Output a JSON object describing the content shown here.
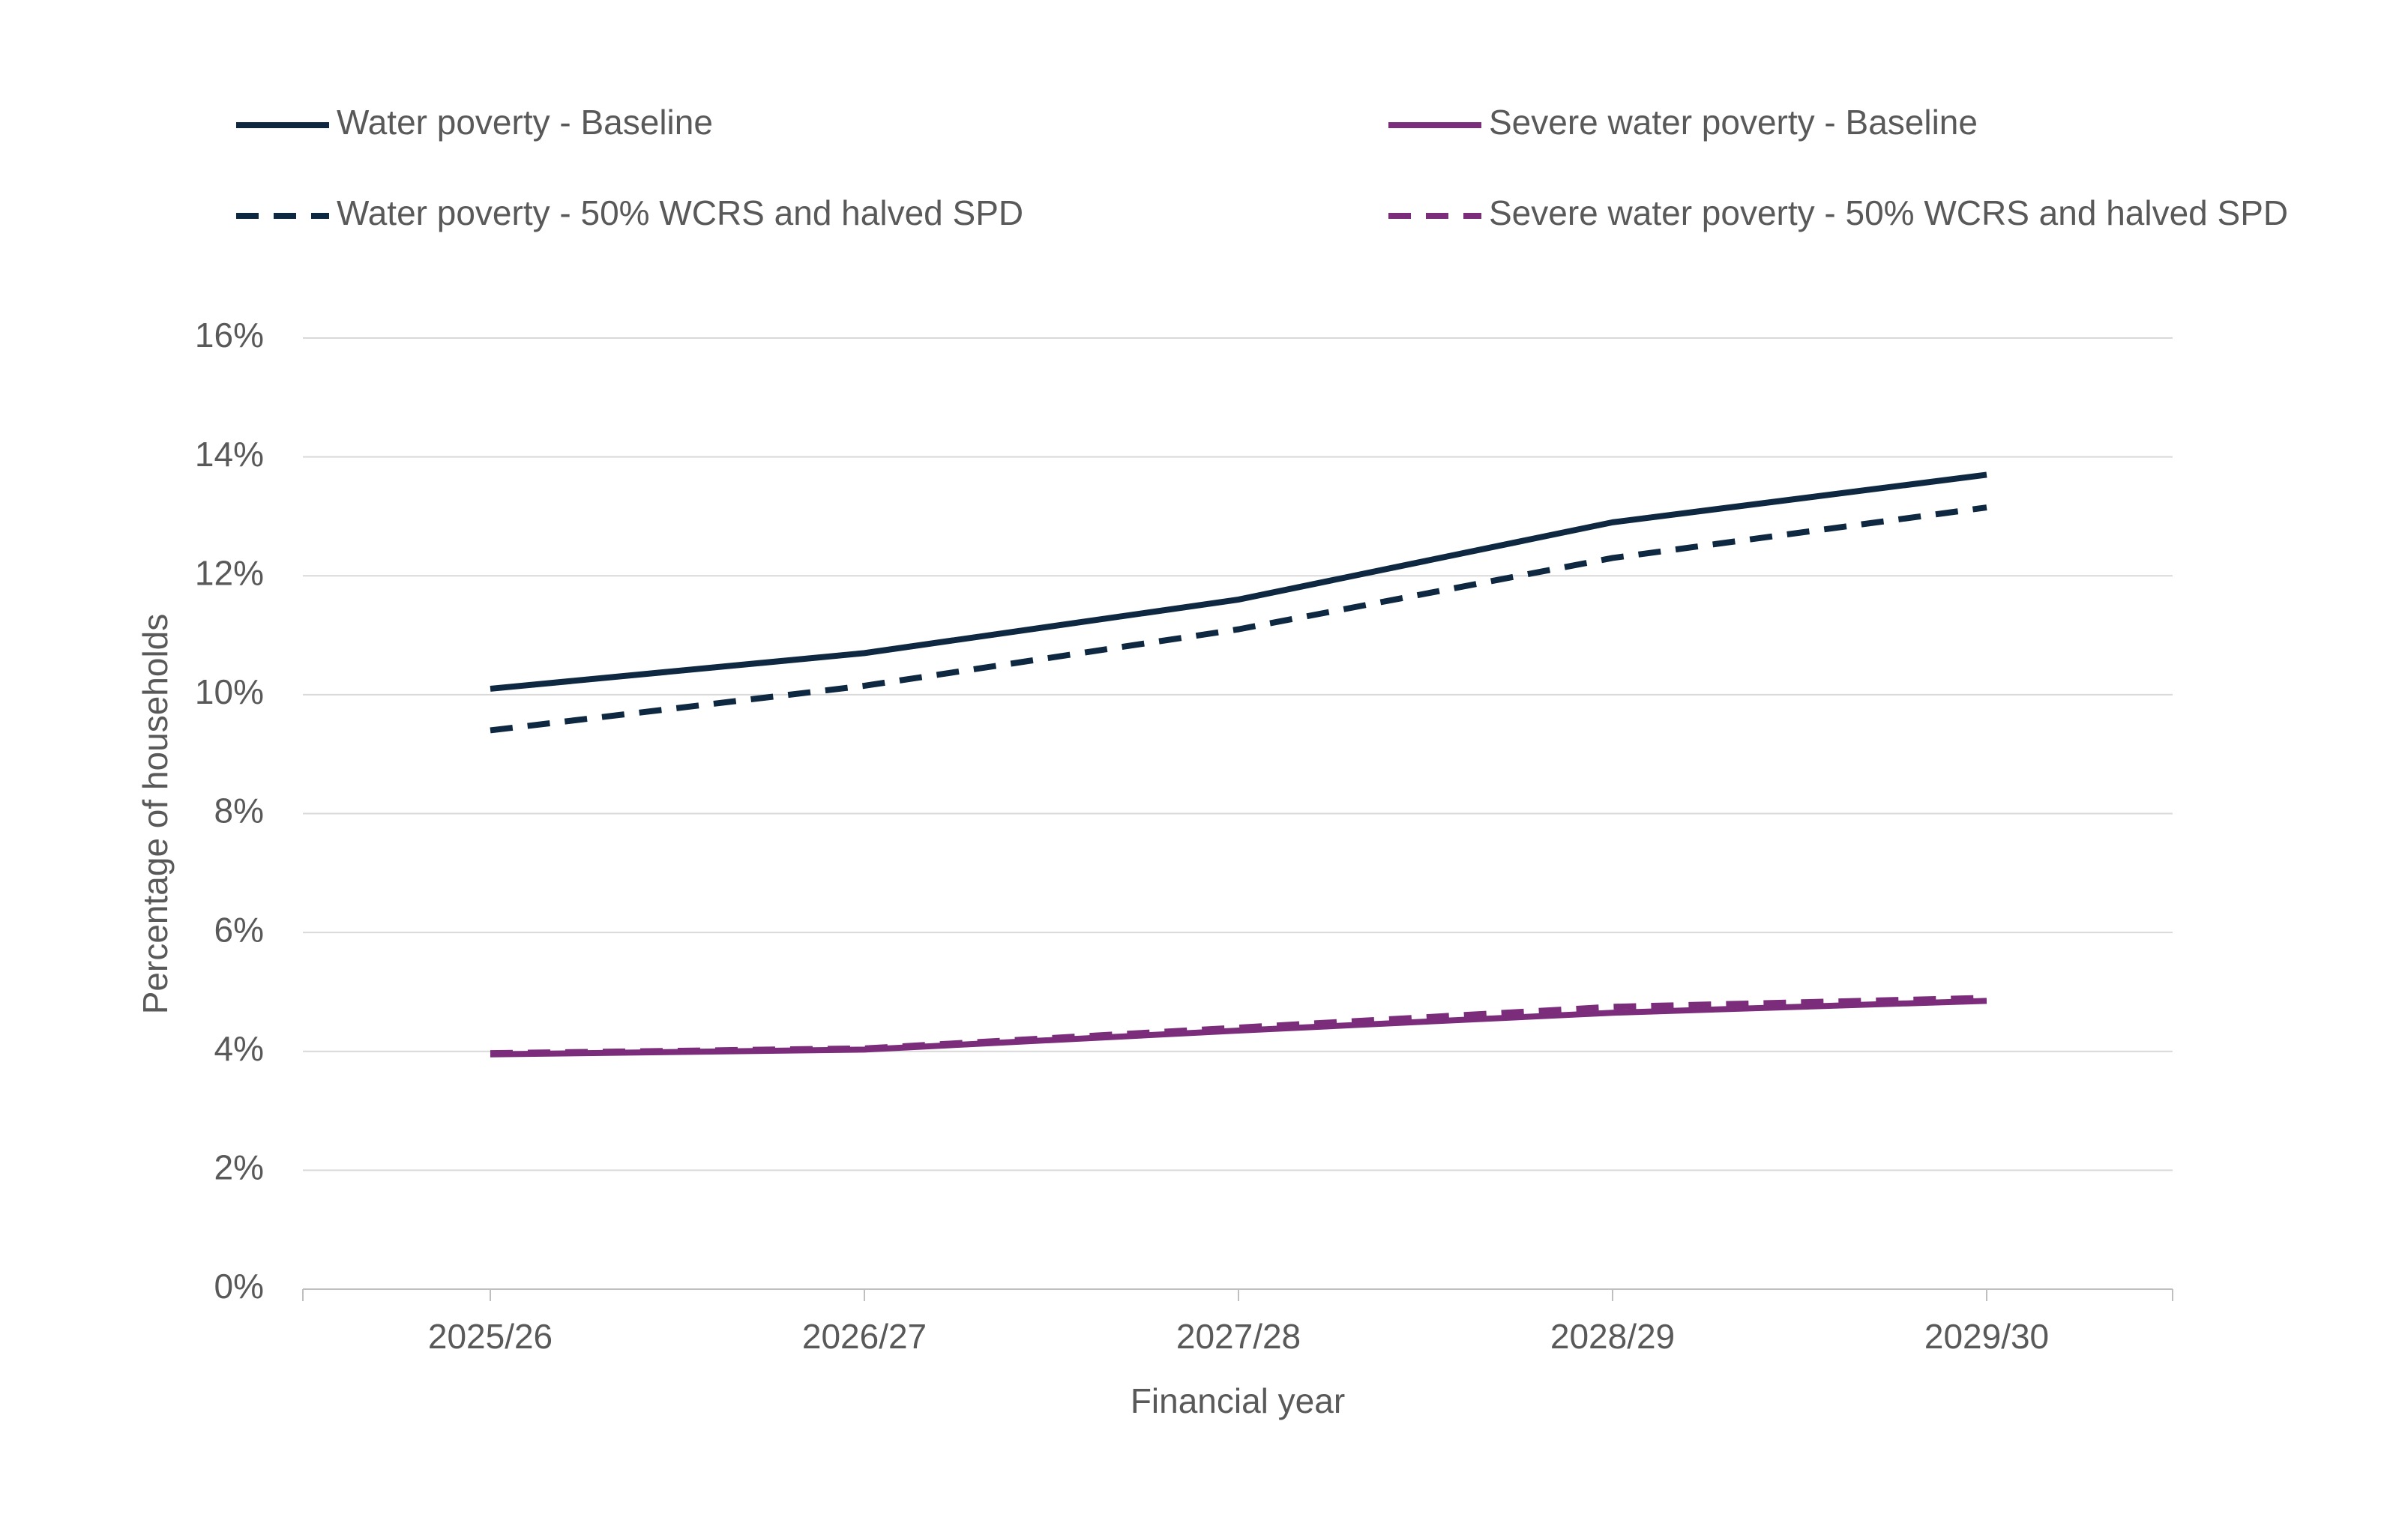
{
  "chart_data": {
    "type": "line",
    "x_label": "Financial year",
    "y_label": "Percentage of households",
    "categories": [
      "2025/26",
      "2026/27",
      "2027/28",
      "2028/29",
      "2029/30"
    ],
    "series": [
      {
        "name": "Water poverty - Baseline",
        "color": "#0e2841",
        "dashed": false,
        "values": [
          10.1,
          10.7,
          11.6,
          12.9,
          13.7
        ]
      },
      {
        "name": "Severe water poverty - Baseline",
        "color": "#7b2d7b",
        "dashed": false,
        "values": [
          3.95,
          4.03,
          4.35,
          4.65,
          4.85
        ]
      },
      {
        "name": "Water poverty - 50% WCRS and halved SPD",
        "color": "#0e2841",
        "dashed": true,
        "values": [
          9.4,
          10.15,
          11.1,
          12.3,
          13.15
        ]
      },
      {
        "name": "Severe water poverty - 50% WCRS and halved SPD",
        "color": "#7b2d7b",
        "dashed": true,
        "values": [
          3.97,
          4.05,
          4.4,
          4.75,
          4.9
        ]
      }
    ],
    "ylim": [
      0,
      16
    ],
    "yticks": [
      {
        "value": 0,
        "label": "0%"
      },
      {
        "value": 2,
        "label": "2%"
      },
      {
        "value": 4,
        "label": "4%"
      },
      {
        "value": 6,
        "label": "6%"
      },
      {
        "value": 8,
        "label": "8%"
      },
      {
        "value": 10,
        "label": "10%"
      },
      {
        "value": 12,
        "label": "12%"
      },
      {
        "value": 14,
        "label": "14%"
      },
      {
        "value": 16,
        "label": "16%"
      }
    ],
    "grid": true
  }
}
